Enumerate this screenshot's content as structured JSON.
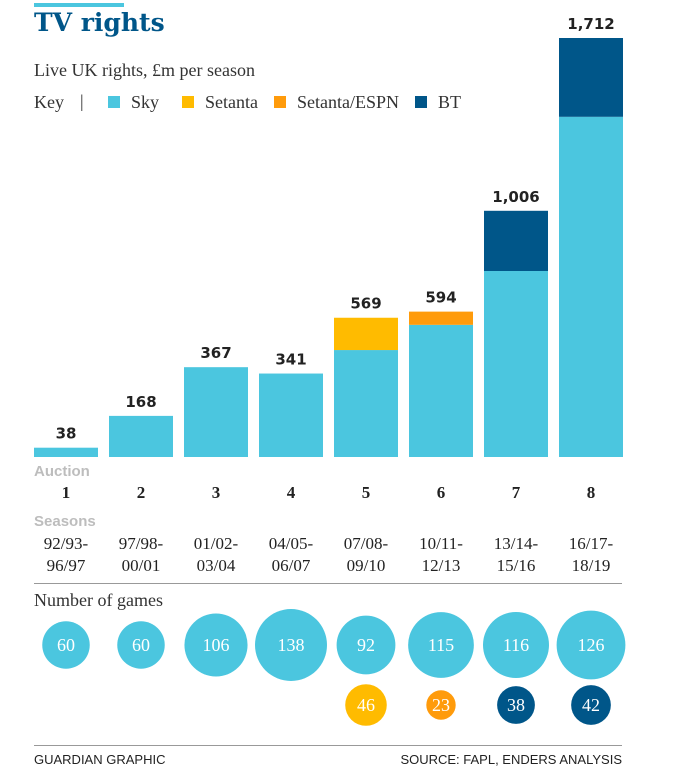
{
  "chart_data": {
    "type": "bar",
    "stacked": true,
    "title": "TV rights",
    "subtitle": "Live UK rights, £m per season",
    "key_label": "Key",
    "key_separator": "|",
    "colors": {
      "Sky": "#4bc6df",
      "Setanta": "#ffbb00",
      "Setanta/ESPN": "#ff9b0b",
      "BT": "#005689"
    },
    "legend": [
      "Sky",
      "Setanta",
      "Setanta/ESPN",
      "BT"
    ],
    "auction_label": "Auction",
    "seasons_label": "Seasons",
    "categories": [
      "1",
      "2",
      "3",
      "4",
      "5",
      "6",
      "7",
      "8"
    ],
    "seasons": [
      [
        "92/93-",
        "96/97"
      ],
      [
        "97/98-",
        "00/01"
      ],
      [
        "01/02-",
        "03/04"
      ],
      [
        "04/05-",
        "06/07"
      ],
      [
        "07/08-",
        "09/10"
      ],
      [
        "10/11-",
        "12/13"
      ],
      [
        "13/14-",
        "15/16"
      ],
      [
        "16/17-",
        "18/19"
      ]
    ],
    "totals": [
      "38",
      "168",
      "367",
      "341",
      "569",
      "594",
      "1,006",
      "1,712"
    ],
    "series": [
      {
        "name": "Sky",
        "values": [
          38,
          168,
          367,
          341,
          437,
          540,
          760,
          1390
        ]
      },
      {
        "name": "Setanta",
        "values": [
          0,
          0,
          0,
          0,
          132,
          0,
          0,
          0
        ]
      },
      {
        "name": "Setanta/ESPN",
        "values": [
          0,
          0,
          0,
          0,
          0,
          54,
          0,
          0
        ]
      },
      {
        "name": "BT",
        "values": [
          0,
          0,
          0,
          0,
          0,
          0,
          246,
          322
        ]
      }
    ],
    "ylim": [
      0,
      1712
    ],
    "games_label": "Number of games",
    "games": {
      "Sky": [
        "60",
        "60",
        "106",
        "138",
        "92",
        "115",
        "116",
        "126"
      ],
      "second": [
        null,
        null,
        null,
        null,
        {
          "name": "Setanta",
          "value": "46"
        },
        {
          "name": "Setanta/ESPN",
          "value": "23"
        },
        {
          "name": "BT",
          "value": "38"
        },
        {
          "name": "BT",
          "value": "42"
        }
      ]
    }
  },
  "footer": {
    "left": "GUARDIAN GRAPHIC",
    "right": "SOURCE: FAPL, ENDERS ANALYSIS"
  }
}
